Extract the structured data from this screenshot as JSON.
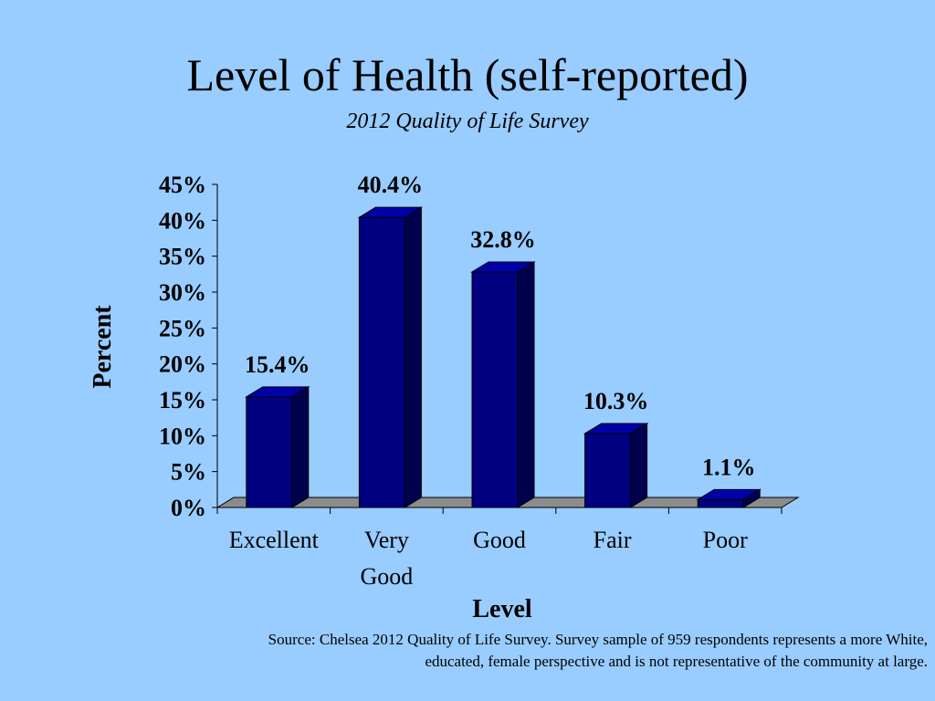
{
  "slide": {
    "title": "Level of Health (self-reported)",
    "subtitle": "2012 Quality of Life Survey",
    "source": "Source: Chelsea 2012 Quality of Life Survey. Survey sample of 959 respondents represents a more White, educated, female perspective and is not representative of the community at large."
  },
  "colors": {
    "background": "#99ccff",
    "bar_front": "#000080",
    "bar_side": "#00004d",
    "bar_top": "#0000a8",
    "floor": "#8c8c8c"
  },
  "chart_data": {
    "type": "bar",
    "categories": [
      "Excellent",
      "Very Good",
      "Good",
      "Fair",
      "Poor"
    ],
    "category_lines": [
      [
        "Excellent"
      ],
      [
        "Very",
        "Good"
      ],
      [
        "Good"
      ],
      [
        "Fair"
      ],
      [
        "Poor"
      ]
    ],
    "values": [
      15.4,
      40.4,
      32.8,
      10.3,
      1.1
    ],
    "data_labels": [
      "15.4%",
      "40.4%",
      "32.8%",
      "10.3%",
      "1.1%"
    ],
    "ylim": [
      0,
      45
    ],
    "yticks": [
      0,
      5,
      10,
      15,
      20,
      25,
      30,
      35,
      40,
      45
    ],
    "ytick_labels": [
      "0%",
      "5%",
      "10%",
      "15%",
      "20%",
      "25%",
      "30%",
      "35%",
      "40%",
      "45%"
    ],
    "xlabel": "Level",
    "ylabel": "Percent",
    "grid": false,
    "style": "3d"
  }
}
